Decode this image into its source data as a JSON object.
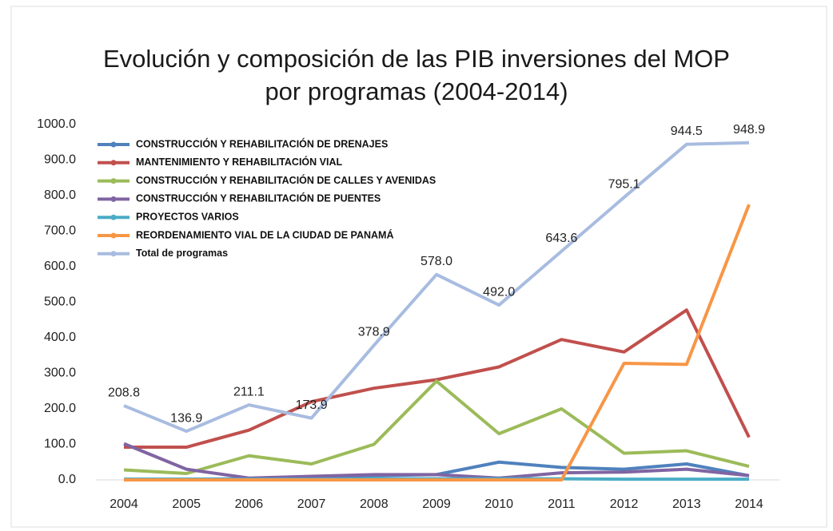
{
  "chart_data": {
    "type": "line",
    "title": "Evolución y composición de las PIB inversiones del MOP",
    "subtitle": "por programas (2004-2014)",
    "categories": [
      "2004",
      "2005",
      "2006",
      "2007",
      "2008",
      "2009",
      "2010",
      "2011",
      "2012",
      "2013",
      "2014"
    ],
    "ylim": [
      0,
      1000
    ],
    "yticks": [
      {
        "value": 0,
        "label": "0.0"
      },
      {
        "value": 100,
        "label": "100.0"
      },
      {
        "value": 200,
        "label": "200.0"
      },
      {
        "value": 300,
        "label": "300.0"
      },
      {
        "value": 400,
        "label": "400.0"
      },
      {
        "value": 500,
        "label": "500.0"
      },
      {
        "value": 600,
        "label": "600.0"
      },
      {
        "value": 700,
        "label": "700.0"
      },
      {
        "value": 800,
        "label": "800.0"
      },
      {
        "value": 900,
        "label": "900.0"
      },
      {
        "value": 1000,
        "label": "1000.0"
      }
    ],
    "legend": "top-left",
    "series": [
      {
        "name": "CONSTRUCCIÓN Y REHABILITACIÓN DE DRENAJES",
        "color": "#4f81bd",
        "values": [
          2,
          2,
          3,
          8,
          12,
          15,
          50,
          35,
          30,
          45,
          12
        ]
      },
      {
        "name": "MANTENIMIENTO  Y REHABILITACIÓN VIAL",
        "color": "#c0504d",
        "values": [
          92,
          92,
          140,
          220,
          258,
          282,
          318,
          395,
          360,
          478,
          120
        ]
      },
      {
        "name": "CONSTRUCCIÓN  Y REHABILITACIÓN DE CALLES Y AVENIDAS",
        "color": "#9bbb59",
        "values": [
          28,
          18,
          68,
          45,
          100,
          278,
          130,
          200,
          75,
          82,
          38
        ]
      },
      {
        "name": "CONSTRUCCIÓN  Y REHABILITACIÓN DE PUENTES",
        "color": "#8064a2",
        "values": [
          102,
          30,
          5,
          10,
          15,
          15,
          5,
          20,
          22,
          30,
          12
        ]
      },
      {
        "name": "PROYECTOS VARIOS",
        "color": "#4bacc6",
        "values": [
          2,
          2,
          2,
          2,
          3,
          3,
          3,
          3,
          2,
          2,
          2
        ]
      },
      {
        "name": "REORDENAMIENTO VIAL DE LA CIUDAD DE PANAMÁ",
        "color": "#f79646",
        "values": [
          0,
          0,
          0,
          0,
          0,
          0,
          0,
          0,
          328,
          325,
          775
        ]
      },
      {
        "name": "Total de programas",
        "color": "#a8bce0",
        "values": [
          208.8,
          136.9,
          211.1,
          173.9,
          378.9,
          578,
          492,
          643.6,
          795.1,
          944.5,
          948.9
        ],
        "value_labels": [
          "208.8",
          "136.9",
          "211.1",
          "173.9",
          "378.9",
          "578.0",
          "492.0",
          "643.6",
          "795.1",
          "944.5",
          "948.9"
        ]
      }
    ]
  }
}
